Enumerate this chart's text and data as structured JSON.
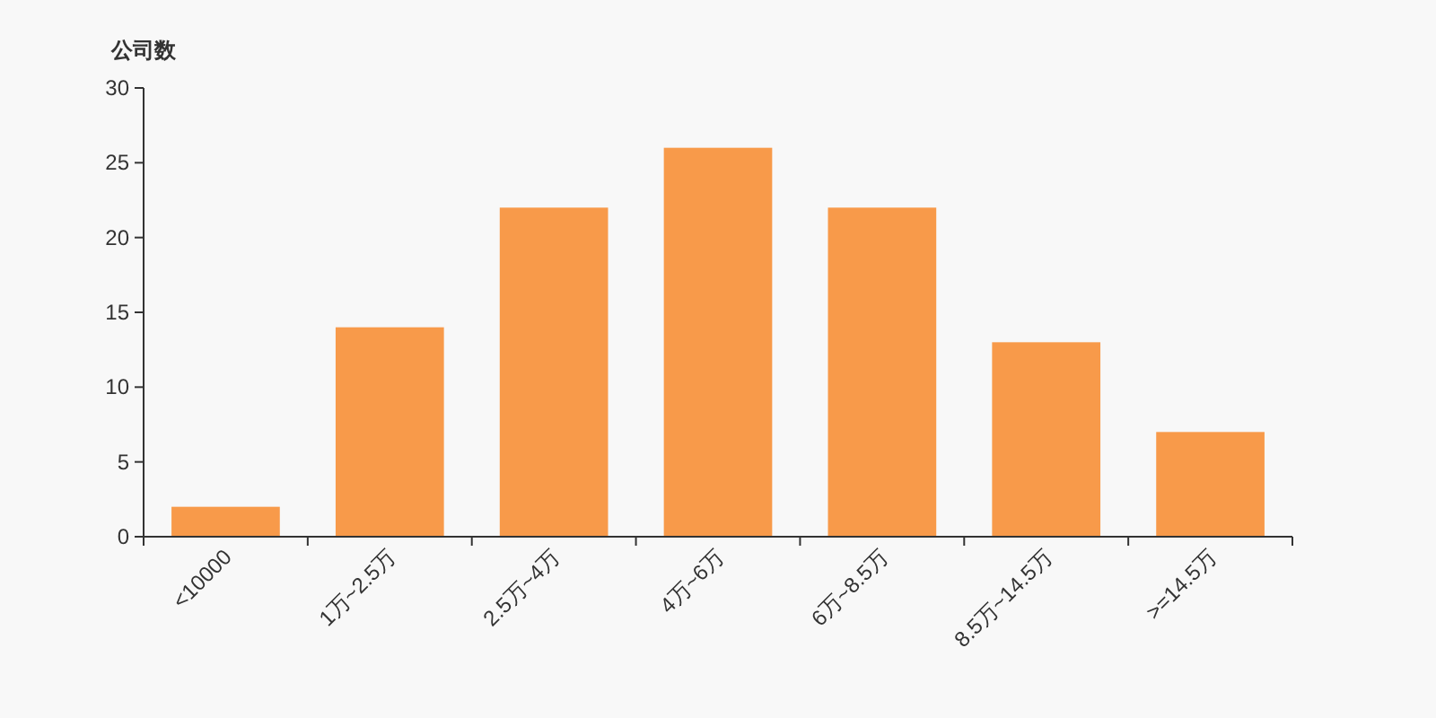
{
  "chart_data": {
    "type": "bar",
    "ylabel": "公司数",
    "categories": [
      "<10000",
      "1万~2.5万",
      "2.5万~4万",
      "4万~6万",
      "6万~8.5万",
      "8.5万~14.5万",
      ">=14.5万"
    ],
    "values": [
      2,
      14,
      22,
      26,
      22,
      13,
      7
    ],
    "color": "#f89a4a",
    "ylim": [
      0,
      30
    ],
    "yticks": [
      0,
      5,
      10,
      15,
      20,
      25,
      30
    ],
    "grid": false
  }
}
